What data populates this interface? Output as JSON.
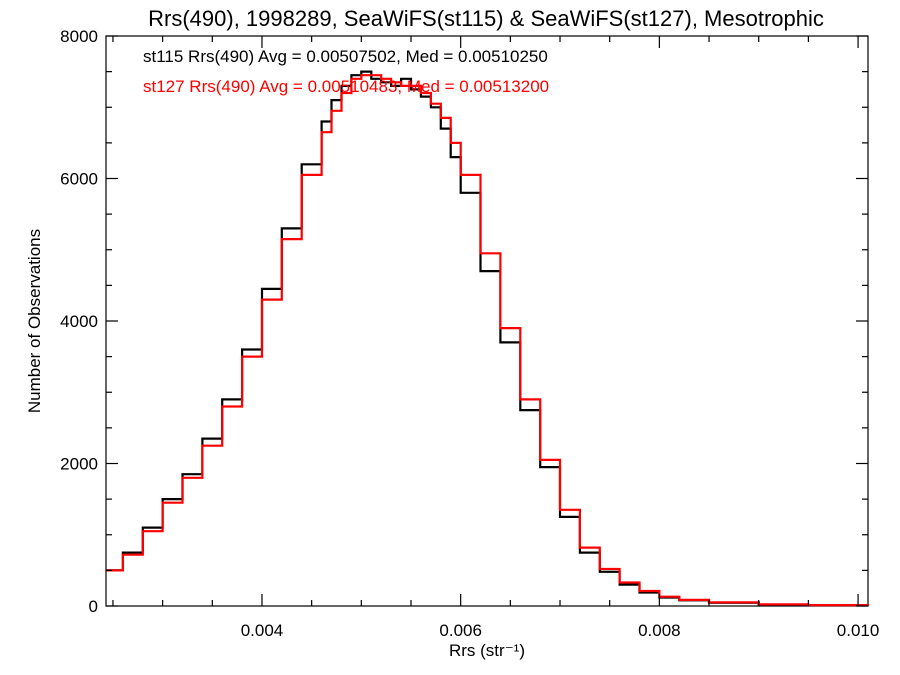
{
  "chart_data": {
    "type": "line",
    "step": true,
    "title": "Rrs(490), 1998289, SeaWiFS(st115) & SeaWiFS(st127), Mesotrophic",
    "xlabel": "Rrs (str⁻¹)",
    "ylabel": "Number of Observations",
    "xlim": [
      0.00243,
      0.0101
    ],
    "ylim": [
      0,
      8000
    ],
    "xticks": [
      0.004,
      0.006,
      0.008,
      0.01
    ],
    "xtick_labels": [
      "0.004",
      "0.006",
      "0.008",
      "0.010"
    ],
    "yticks": [
      0,
      2000,
      4000,
      6000,
      8000
    ],
    "ytick_labels": [
      "0",
      "2000",
      "4000",
      "6000",
      "8000"
    ],
    "legend": [
      {
        "text": "st115 Rrs(490) Avg = 0.00507502, Med = 0.00510250",
        "color": "#000000"
      },
      {
        "text": "st127 Rrs(490) Avg = 0.00510483, Med = 0.00513200",
        "color": "#ff0000"
      }
    ],
    "series": [
      {
        "name": "st115",
        "color": "#000000",
        "x": [
          0.00243,
          0.0026,
          0.0028,
          0.003,
          0.0032,
          0.0034,
          0.0036,
          0.0038,
          0.004,
          0.0042,
          0.0044,
          0.0046,
          0.0047,
          0.0048,
          0.0049,
          0.005,
          0.0051,
          0.0052,
          0.0053,
          0.0054,
          0.0055,
          0.0056,
          0.0057,
          0.0058,
          0.0059,
          0.006,
          0.0062,
          0.0064,
          0.0066,
          0.0068,
          0.007,
          0.0072,
          0.0074,
          0.0076,
          0.0078,
          0.008,
          0.0082,
          0.0085,
          0.009,
          0.0095,
          0.0101
        ],
        "y": [
          500,
          750,
          1100,
          1500,
          1850,
          2350,
          2900,
          3600,
          4450,
          5300,
          6200,
          6800,
          7100,
          7300,
          7450,
          7500,
          7400,
          7350,
          7300,
          7400,
          7250,
          7150,
          7000,
          6700,
          6300,
          5800,
          4700,
          3700,
          2750,
          1950,
          1250,
          750,
          480,
          300,
          190,
          120,
          80,
          45,
          20,
          10,
          5
        ]
      },
      {
        "name": "st127",
        "color": "#ff0000",
        "x": [
          0.00243,
          0.0026,
          0.0028,
          0.003,
          0.0032,
          0.0034,
          0.0036,
          0.0038,
          0.004,
          0.0042,
          0.0044,
          0.0046,
          0.0047,
          0.0048,
          0.0049,
          0.005,
          0.0051,
          0.0052,
          0.0053,
          0.0054,
          0.0055,
          0.0056,
          0.0057,
          0.0058,
          0.0059,
          0.006,
          0.0062,
          0.0064,
          0.0066,
          0.0068,
          0.007,
          0.0072,
          0.0074,
          0.0076,
          0.0078,
          0.008,
          0.0082,
          0.0085,
          0.009,
          0.0095,
          0.0101
        ],
        "y": [
          500,
          720,
          1050,
          1450,
          1800,
          2250,
          2800,
          3500,
          4300,
          5150,
          6050,
          6650,
          6950,
          7200,
          7400,
          7450,
          7450,
          7400,
          7350,
          7300,
          7300,
          7200,
          7050,
          6850,
          6500,
          6050,
          4950,
          3900,
          2900,
          2050,
          1350,
          820,
          520,
          330,
          210,
          130,
          85,
          50,
          22,
          12,
          6
        ]
      }
    ]
  }
}
